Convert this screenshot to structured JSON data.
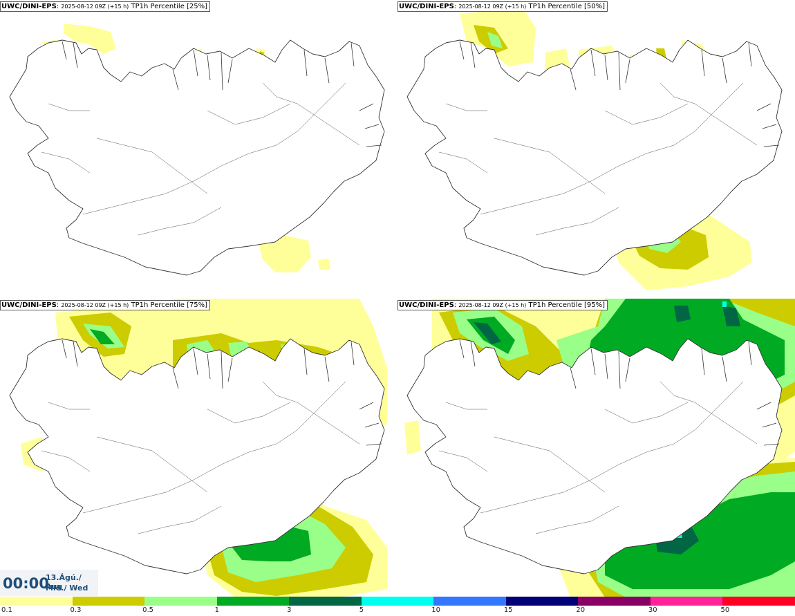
{
  "panels": [
    {
      "model": "UWC/DINI-EPS",
      "run": "2025-08-12 09Z (+15 h)",
      "field": "TP1h Percentile [25%]",
      "percentile": 25
    },
    {
      "model": "UWC/DINI-EPS",
      "run": "2025-08-12 09Z (+15 h)",
      "field": "TP1h Percentile [50%]",
      "percentile": 50
    },
    {
      "model": "UWC/DINI-EPS",
      "run": "2025-08-12 09Z (+15 h)",
      "field": "TP1h Percentile [75%]",
      "percentile": 75
    },
    {
      "model": "UWC/DINI-EPS",
      "run": "2025-08-12 09Z (+15 h)",
      "field": "TP1h Percentile [95%]",
      "percentile": 95
    }
  ],
  "valid_time": {
    "hour": "00:00",
    "day": "13.Ágú./ Aug",
    "weekday": "Mið./ Wed"
  },
  "legend": {
    "labels": [
      "0.1",
      "0.3",
      "0.5",
      "1",
      "3",
      "5",
      "10",
      "15",
      "20",
      "30",
      "50"
    ],
    "colors": [
      "#ffff99",
      "#cccc00",
      "#99ff88",
      "#00aa22",
      "#006644",
      "#00ffee",
      "#3377ff",
      "#000077",
      "#880066",
      "#ff2299",
      "#ff0022"
    ]
  },
  "colors": {
    "level1": "#ffff99",
    "level2": "#cccc00",
    "level3": "#99ff88",
    "level4": "#00aa22",
    "level5": "#006644",
    "level6": "#00ffee",
    "coast": "#333333",
    "time_text": "#1f4e79"
  }
}
